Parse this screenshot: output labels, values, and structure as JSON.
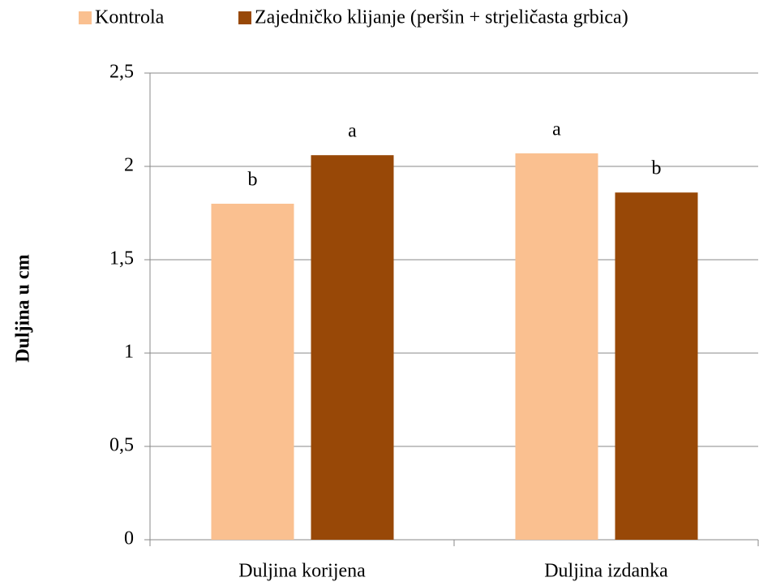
{
  "chart_data": {
    "type": "bar",
    "y_axis_label": "Duljina u cm",
    "categories": [
      "Duljina korijena",
      "Duljina izdanka"
    ],
    "series": [
      {
        "name": "Kontrola",
        "color": "#fac090",
        "values": [
          1.8,
          2.07
        ],
        "letters": [
          "b",
          "a"
        ]
      },
      {
        "name": "Zajedničko klijanje (peršin + strjeličasta grbica)",
        "color": "#984807",
        "values": [
          2.06,
          1.86
        ],
        "letters": [
          "a",
          "b"
        ]
      }
    ],
    "ylim": [
      0,
      2.5
    ],
    "yticks": [
      0,
      {
        "value": 0.5,
        "label": "0,5"
      },
      1,
      {
        "value": 1.5,
        "label": "1,5"
      },
      2,
      {
        "value": 2.5,
        "label": "2,5"
      }
    ],
    "grid": true,
    "legend": "top"
  }
}
